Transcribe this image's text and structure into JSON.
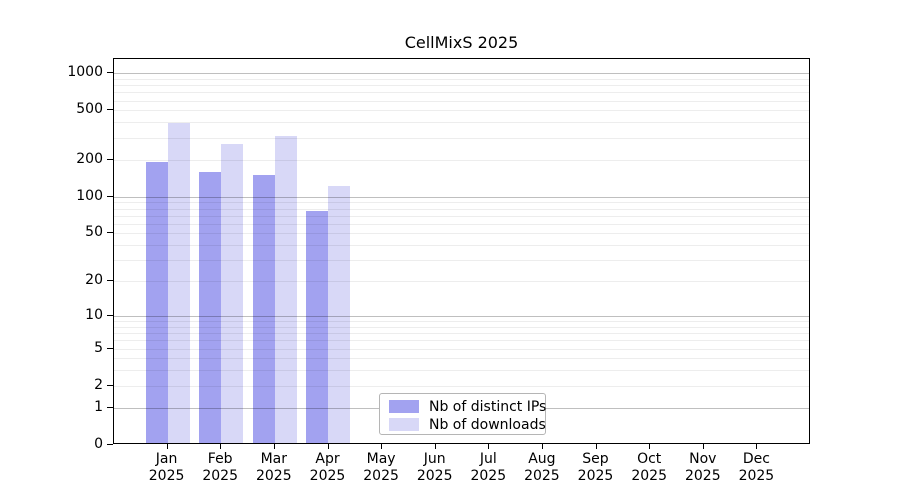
{
  "figure": {
    "background": "#ffffff"
  },
  "chart_data": {
    "type": "bar",
    "title": "CellMixS 2025",
    "year_label": "2025",
    "categories": [
      "Jan",
      "Feb",
      "Mar",
      "Apr",
      "May",
      "Jun",
      "Jul",
      "Aug",
      "Sep",
      "Oct",
      "Nov",
      "Dec"
    ],
    "series": [
      {
        "name": "Nb of distinct IPs",
        "color": "#a2a2f0",
        "values": [
          185,
          153,
          145,
          73,
          0,
          0,
          0,
          0,
          0,
          0,
          0,
          0
        ]
      },
      {
        "name": "Nb of downloads",
        "color": "#d8d8f7",
        "values": [
          380,
          257,
          297,
          118,
          0,
          0,
          0,
          0,
          0,
          0,
          0,
          0
        ]
      }
    ],
    "xlabel": "",
    "ylabel": "",
    "yscale": "log10(value+1)",
    "yticks": [
      0,
      1,
      2,
      5,
      10,
      20,
      50,
      100,
      200,
      500,
      1000
    ],
    "ylim": [
      0,
      1300
    ],
    "grid": {
      "major_lines": [
        1,
        10,
        100,
        1000
      ],
      "minor_lines": "2-9 of each decade",
      "orientation": "horizontal"
    },
    "legend_position": "inside lower-center"
  },
  "colors": {
    "bar_distinct_ips": "#a2a2f0",
    "bar_downloads": "#d8d8f7",
    "frame": "#000000",
    "grid_major": "#c2c2c2",
    "grid_minor": "#ededed",
    "text": "#000000",
    "legend_border": "#b5b5b5",
    "legend_background": "#ffffff"
  }
}
